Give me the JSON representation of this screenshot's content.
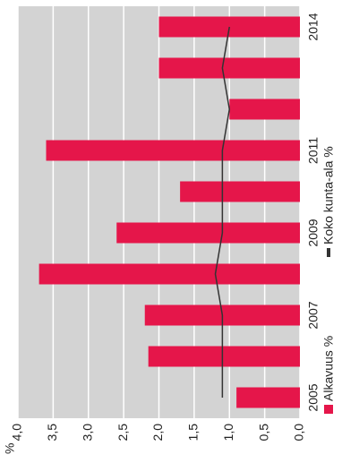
{
  "chart_data": {
    "type": "bar",
    "y_unit": "%",
    "categories": [
      "2005",
      null,
      "2007",
      null,
      "2009",
      null,
      "2011",
      null,
      null,
      "2014"
    ],
    "series": [
      {
        "name": "Alkavuus %",
        "color": "#e5164a",
        "type": "bar",
        "values": [
          0.9,
          2.15,
          2.2,
          3.7,
          2.6,
          1.7,
          3.6,
          1.0,
          2.0,
          2.0
        ]
      },
      {
        "name": "Koko kunta-ala %",
        "color": "#333333",
        "type": "line",
        "values": [
          1.1,
          1.1,
          1.1,
          1.2,
          1.1,
          1.1,
          1.1,
          1.0,
          1.1,
          1.0
        ]
      }
    ],
    "ylim": [
      0,
      4
    ],
    "yticks": [
      {
        "value": 0,
        "label": "0,0"
      },
      {
        "value": 0.5,
        "label": "0,5"
      },
      {
        "value": 1,
        "label": "1,0"
      },
      {
        "value": 1.5,
        "label": "1,5"
      },
      {
        "value": 2,
        "label": "2,0"
      },
      {
        "value": 2.5,
        "label": "2,5"
      },
      {
        "value": 3,
        "label": "3,0"
      },
      {
        "value": 3.5,
        "label": "3,5"
      },
      {
        "value": 4,
        "label": "4,0"
      }
    ],
    "grid": true,
    "background": "#d3d3d3"
  }
}
